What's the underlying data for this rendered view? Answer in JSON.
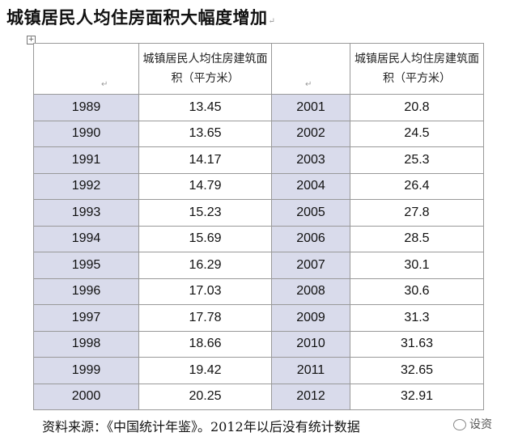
{
  "title": "城镇居民人均住房面积大幅度增加",
  "header": {
    "col1_empty": "",
    "col2": "城镇居民人均住房建筑面积（平方米）",
    "col3_empty": "",
    "col4": "城镇居民人均住房建筑面积（平方米）"
  },
  "rows": [
    {
      "y1": "1989",
      "v1": "13.45",
      "y2": "2001",
      "v2": "20.8"
    },
    {
      "y1": "1990",
      "v1": "13.65",
      "y2": "2002",
      "v2": "24.5"
    },
    {
      "y1": "1991",
      "v1": "14.17",
      "y2": "2003",
      "v2": "25.3"
    },
    {
      "y1": "1992",
      "v1": "14.79",
      "y2": "2004",
      "v2": "26.4"
    },
    {
      "y1": "1993",
      "v1": "15.23",
      "y2": "2005",
      "v2": "27.8"
    },
    {
      "y1": "1994",
      "v1": "15.69",
      "y2": "2006",
      "v2": "28.5"
    },
    {
      "y1": "1995",
      "v1": "16.29",
      "y2": "2007",
      "v2": "30.1"
    },
    {
      "y1": "1996",
      "v1": "17.03",
      "y2": "2008",
      "v2": "30.6"
    },
    {
      "y1": "1997",
      "v1": "17.78",
      "y2": "2009",
      "v2": "31.3"
    },
    {
      "y1": "1998",
      "v1": "18.66",
      "y2": "2010",
      "v2": "31.63"
    },
    {
      "y1": "1999",
      "v1": "19.42",
      "y2": "2011",
      "v2": "32.65"
    },
    {
      "y1": "2000",
      "v1": "20.25",
      "y2": "2012",
      "v2": "32.91"
    }
  ],
  "footer": "资料来源：《中国统计年鉴》。2012年以后没有统计数据",
  "watermark": "设资",
  "colors": {
    "year_cell_bg": "#d9dbeb",
    "border": "#999999"
  }
}
